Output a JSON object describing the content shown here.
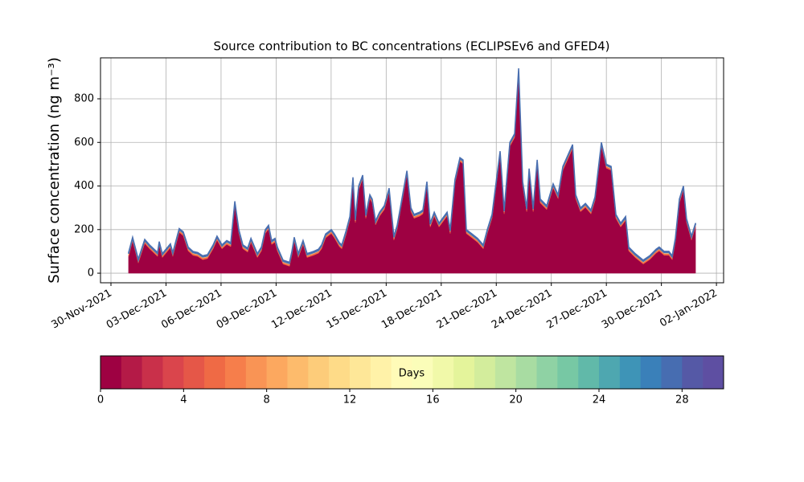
{
  "chart_data": {
    "type": "stackedarea",
    "title": "Source contribution to BC concentrations (ECLIPSEv6 and GFED4)",
    "y_label": "Surface concentration (ng m⁻³)",
    "x": [
      0.96,
      1.18,
      1.49,
      1.84,
      2.1,
      2.54,
      2.63,
      2.8,
      3.24,
      3.37,
      3.72,
      3.94,
      4.21,
      4.47,
      4.73,
      5.0,
      5.26,
      5.57,
      5.78,
      6.05,
      6.31,
      6.53,
      6.75,
      6.97,
      7.19,
      7.45,
      7.63,
      7.98,
      8.2,
      8.41,
      8.59,
      8.76,
      8.94,
      9.07,
      9.38,
      9.73,
      9.86,
      9.99,
      10.21,
      10.47,
      10.69,
      11.04,
      11.31,
      11.48,
      11.7,
      12.01,
      12.18,
      12.45,
      12.58,
      12.8,
      13.02,
      13.19,
      13.32,
      13.5,
      13.72,
      13.89,
      14.11,
      14.24,
      14.42,
      14.64,
      14.9,
      15.16,
      15.42,
      15.6,
      15.77,
      16.13,
      16.35,
      16.52,
      16.83,
      17.0,
      17.22,
      17.4,
      17.62,
      17.88,
      18.32,
      18.49,
      18.75,
      19.02,
      19.19,
      19.37,
      19.68,
      19.98,
      20.29,
      20.51,
      20.77,
      21.04,
      21.21,
      21.43,
      21.74,
      22.0,
      22.22,
      22.44,
      22.66,
      22.79,
      23.01,
      23.23,
      23.4,
      23.75,
      24.1,
      24.37,
      24.63,
      25.16,
      25.33,
      25.59,
      25.86,
      26.16,
      26.38,
      26.73,
      27.0,
      27.26,
      27.52,
      27.78,
      28.05,
      28.22,
      28.57,
      29.01,
      29.36,
      29.71,
      29.88,
      30.15,
      30.41,
      30.59,
      30.76,
      30.98,
      31.2,
      31.37,
      31.64,
      31.86
    ],
    "series": [
      {
        "color": "#9e0142",
        "values": [
          77,
          147,
          47,
          137,
          112,
          77,
          127,
          72,
          117,
          77,
          187,
          172,
          102,
          82,
          77,
          62,
          67,
          112,
          152,
          112,
          132,
          122,
          312,
          182,
          112,
          97,
          142,
          72,
          102,
          182,
          202,
          132,
          142,
          102,
          42,
          32,
          82,
          147,
          72,
          132,
          72,
          82,
          92,
          112,
          162,
          182,
          162,
          122,
          112,
          172,
          242,
          422,
          232,
          382,
          432,
          252,
          342,
          322,
          222,
          262,
          292,
          372,
          152,
          202,
          282,
          452,
          282,
          252,
          262,
          272,
          402,
          212,
          262,
          212,
          262,
          182,
          412,
          512,
          502,
          182,
          162,
          142,
          112,
          182,
          252,
          432,
          542,
          272,
          582,
          622,
          922,
          402,
          282,
          462,
          282,
          502,
          322,
          292,
          392,
          342,
          472,
          572,
          342,
          282,
          302,
          272,
          332,
          582,
          482,
          472,
          252,
          212,
          242,
          102,
          72,
          42,
          62,
          92,
          102,
          82,
          82,
          62,
          142,
          322,
          382,
          232,
          152,
          212
        ]
      },
      {
        "color": "#f46d43",
        "values": [
          8,
          8,
          8,
          8,
          8,
          8,
          8,
          8,
          8,
          8,
          8,
          8,
          8,
          8,
          8,
          8,
          8,
          8,
          8,
          8,
          8,
          8,
          8,
          8,
          8,
          8,
          8,
          8,
          8,
          8,
          8,
          8,
          8,
          8,
          8,
          8,
          8,
          8,
          8,
          8,
          8,
          8,
          8,
          8,
          8,
          8,
          8,
          8,
          8,
          8,
          8,
          8,
          8,
          8,
          8,
          8,
          8,
          8,
          8,
          8,
          8,
          8,
          8,
          8,
          8,
          8,
          8,
          8,
          8,
          8,
          8,
          8,
          8,
          8,
          8,
          8,
          8,
          8,
          8,
          8,
          8,
          8,
          8,
          8,
          8,
          8,
          8,
          8,
          8,
          8,
          8,
          8,
          8,
          8,
          8,
          8,
          8,
          8,
          8,
          8,
          8,
          8,
          8,
          8,
          8,
          8,
          8,
          8,
          8,
          8,
          8,
          8,
          8,
          8,
          8,
          8,
          8,
          8,
          8,
          8,
          8,
          8,
          8,
          8,
          8,
          8,
          8,
          8
        ]
      },
      {
        "color": "#fee08b",
        "values": [
          4,
          4,
          4,
          4,
          4,
          4,
          4,
          4,
          4,
          4,
          4,
          4,
          4,
          4,
          4,
          4,
          4,
          4,
          4,
          4,
          4,
          4,
          4,
          4,
          4,
          4,
          4,
          4,
          4,
          4,
          4,
          4,
          4,
          4,
          4,
          4,
          4,
          4,
          4,
          4,
          4,
          4,
          4,
          4,
          4,
          4,
          4,
          4,
          4,
          4,
          4,
          4,
          4,
          4,
          4,
          4,
          4,
          4,
          4,
          4,
          4,
          4,
          4,
          4,
          4,
          4,
          4,
          4,
          4,
          4,
          4,
          4,
          4,
          4,
          4,
          4,
          4,
          4,
          4,
          4,
          4,
          4,
          4,
          4,
          4,
          4,
          4,
          4,
          4,
          4,
          4,
          4,
          4,
          4,
          4,
          4,
          4,
          4,
          4,
          4,
          4,
          4,
          4,
          4,
          4,
          4,
          4,
          4,
          4,
          4,
          4,
          4,
          4,
          4,
          4,
          4,
          4,
          4,
          4,
          4,
          4,
          4,
          4,
          4,
          4,
          4,
          4,
          4
        ]
      },
      {
        "color": "#4a6fb0",
        "values": [
          6,
          6,
          6,
          6,
          6,
          6,
          6,
          6,
          6,
          6,
          6,
          6,
          6,
          6,
          6,
          6,
          6,
          6,
          6,
          6,
          6,
          6,
          6,
          6,
          6,
          6,
          6,
          6,
          6,
          6,
          6,
          6,
          6,
          6,
          6,
          6,
          6,
          6,
          6,
          6,
          6,
          6,
          6,
          6,
          6,
          6,
          6,
          6,
          6,
          6,
          6,
          6,
          6,
          6,
          6,
          6,
          6,
          6,
          6,
          6,
          6,
          6,
          6,
          6,
          6,
          6,
          6,
          6,
          6,
          6,
          6,
          6,
          6,
          6,
          6,
          6,
          6,
          6,
          6,
          6,
          6,
          6,
          6,
          6,
          6,
          6,
          6,
          6,
          6,
          6,
          6,
          6,
          6,
          6,
          6,
          6,
          6,
          6,
          6,
          6,
          6,
          6,
          6,
          6,
          6,
          6,
          6,
          6,
          6,
          6,
          6,
          6,
          6,
          6,
          6,
          6,
          6,
          6,
          6,
          6,
          6,
          6,
          6,
          6,
          6,
          6,
          6,
          6
        ]
      }
    ],
    "xlim": [
      -0.57,
      33.39
    ],
    "xticks": [
      {
        "value": 0,
        "label": "30-Nov-2021"
      },
      {
        "value": 3,
        "label": "03-Dec-2021"
      },
      {
        "value": 6,
        "label": "06-Dec-2021"
      },
      {
        "value": 9,
        "label": "09-Dec-2021"
      },
      {
        "value": 12,
        "label": "12-Dec-2021"
      },
      {
        "value": 15,
        "label": "15-Dec-2021"
      },
      {
        "value": 18,
        "label": "18-Dec-2021"
      },
      {
        "value": 21,
        "label": "21-Dec-2021"
      },
      {
        "value": 24,
        "label": "24-Dec-2021"
      },
      {
        "value": 27,
        "label": "27-Dec-2021"
      },
      {
        "value": 30,
        "label": "30-Dec-2021"
      },
      {
        "value": 33,
        "label": "02-Jan-2022"
      }
    ],
    "ylim": [
      -44,
      988
    ],
    "yticks": [
      0,
      200,
      400,
      600,
      800
    ],
    "grid": true,
    "colorbar": {
      "label": "Days",
      "lim": [
        0,
        30
      ],
      "ticks": [
        0,
        4,
        8,
        12,
        16,
        20,
        24,
        28
      ],
      "colors": [
        "#9e0142",
        "#b41a47",
        "#c9304a",
        "#da454c",
        "#e55748",
        "#ef6a45",
        "#f67e4b",
        "#f99455",
        "#fca85f",
        "#fdbb6c",
        "#fdcc7a",
        "#fedb88",
        "#fee798",
        "#fff2a8",
        "#fffbb8",
        "#fbfdb9",
        "#f1f9a9",
        "#e4f49b",
        "#d3ed9c",
        "#bfe5a0",
        "#a8dca2",
        "#8fd2a4",
        "#77c8a4",
        "#61b9a9",
        "#4ea7b0",
        "#3e94b7",
        "#3a80b9",
        "#476db1",
        "#5559a6",
        "#5e4fa2"
      ]
    }
  }
}
